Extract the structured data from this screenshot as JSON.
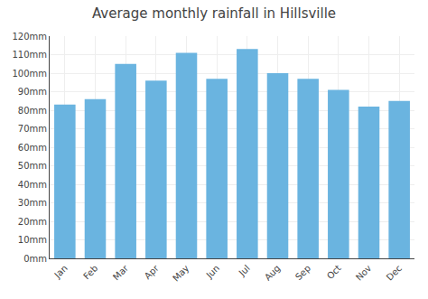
{
  "chart_data": {
    "type": "bar",
    "title": "Average monthly rainfall in Hillsville",
    "categories": [
      "Jan",
      "Feb",
      "Mar",
      "Apr",
      "May",
      "Jun",
      "Jul",
      "Aug",
      "Sep",
      "Oct",
      "Nov",
      "Dec"
    ],
    "values": [
      83,
      86,
      105,
      96,
      111,
      97,
      113,
      100,
      97,
      91,
      82,
      85
    ],
    "color": "#6ab4e0",
    "ylim": [
      0,
      120
    ],
    "yticks": [
      {
        "value": 0,
        "label": "0mm"
      },
      {
        "value": 10,
        "label": "10mm"
      },
      {
        "value": 20,
        "label": "20mm"
      },
      {
        "value": 30,
        "label": "30mm"
      },
      {
        "value": 40,
        "label": "40mm"
      },
      {
        "value": 50,
        "label": "50mm"
      },
      {
        "value": 60,
        "label": "60mm"
      },
      {
        "value": 70,
        "label": "70mm"
      },
      {
        "value": 80,
        "label": "80mm"
      },
      {
        "value": 90,
        "label": "90mm"
      },
      {
        "value": 100,
        "label": "100mm"
      },
      {
        "value": 110,
        "label": "110mm"
      },
      {
        "value": 120,
        "label": "120mm"
      }
    ],
    "grid": true
  }
}
